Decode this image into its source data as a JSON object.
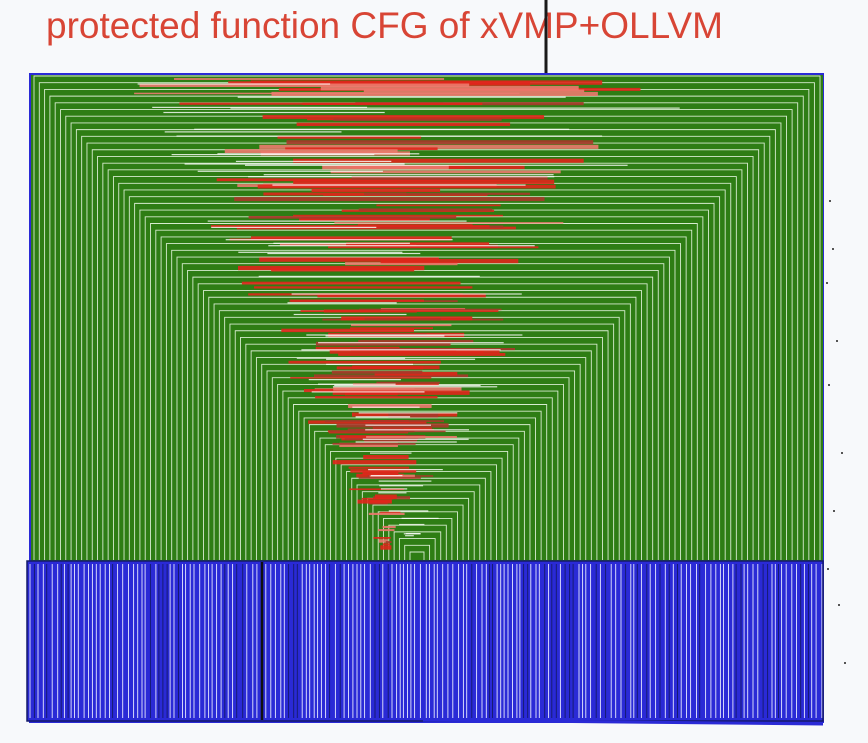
{
  "title": "protected function CFG of xVMP+OLLVM",
  "colors": {
    "edge_forward": "#2e7d14",
    "edge_backward": "#e0261b",
    "edge_loop": "#2a2ad6",
    "background": "#f7f9fb",
    "title": "#d84535"
  }
}
